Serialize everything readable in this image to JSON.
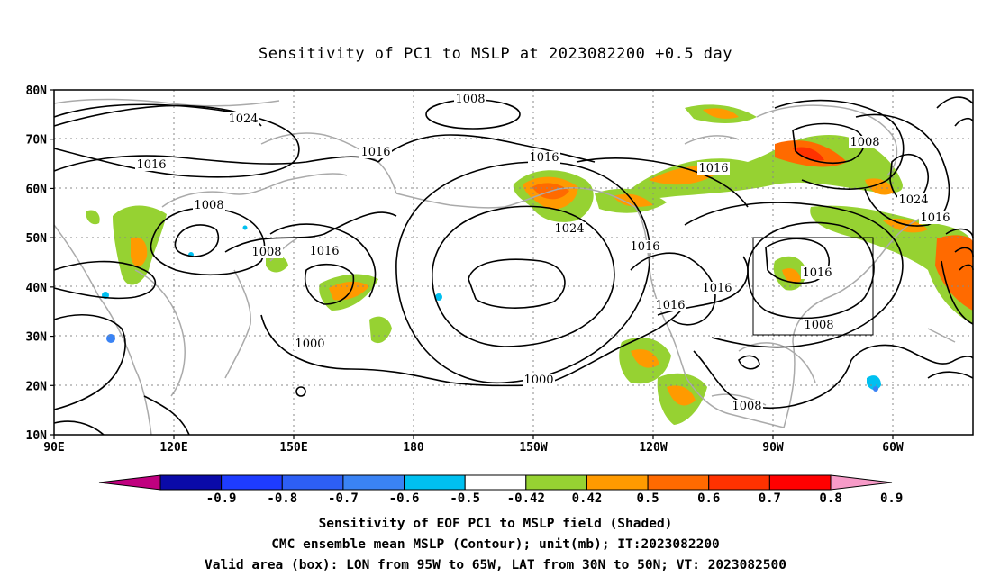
{
  "title": "Sensitivity of PC1 to MSLP at 2023082200 +0.5 day",
  "map": {
    "lat_ticks": [
      "80N",
      "70N",
      "60N",
      "50N",
      "40N",
      "30N",
      "20N",
      "10N"
    ],
    "lon_ticks": [
      "90E",
      "120E",
      "150E",
      "180",
      "150W",
      "120W",
      "90W",
      "60W"
    ],
    "lon_range": [
      "90E",
      "50W"
    ],
    "lat_range": [
      "10N",
      "80N"
    ],
    "grid": "dotted",
    "contour_labels": [
      "1008",
      "1024",
      "1016",
      "1016",
      "1016",
      "1008",
      "1008",
      "1016",
      "1024",
      "1016",
      "1016",
      "1016",
      "1016",
      "1000",
      "1000",
      "1008",
      "1024",
      "1016",
      "1016",
      "1008",
      "1008"
    ],
    "valid_box": {
      "lon": [
        "95W",
        "65W"
      ],
      "lat": [
        "30N",
        "50N"
      ]
    }
  },
  "colorbar": {
    "labels": [
      "-0.9",
      "-0.8",
      "-0.7",
      "-0.6",
      "-0.5",
      "-0.42",
      "0.42",
      "0.5",
      "0.6",
      "0.7",
      "0.8",
      "0.9"
    ],
    "colors": [
      "#c0007f",
      "#0a0aa8",
      "#1e3cff",
      "#2d5ff5",
      "#3a83f4",
      "#00c0f0",
      "#ffffff",
      "#96d232",
      "#ff9a00",
      "#ff6a00",
      "#ff3200",
      "#ff0000",
      "#f79bc8"
    ]
  },
  "footer": {
    "line1": "Sensitivity of EOF PC1 to MSLP field (Shaded)",
    "line2": "CMC ensemble mean MSLP (Contour); unit(mb); IT:2023082200",
    "line3": "Valid area (box): LON from 95W to 65W, LAT from 30N to 50N; VT: 2023082500"
  },
  "colors": {
    "coast": "#aaaaaa",
    "contour": "#000000",
    "box": "#000000"
  }
}
